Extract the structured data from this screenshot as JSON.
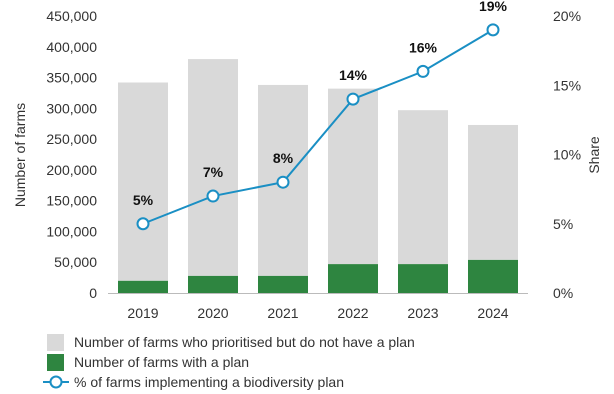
{
  "chart_data": {
    "type": "bar",
    "categories": [
      "2019",
      "2020",
      "2021",
      "2022",
      "2023",
      "2024"
    ],
    "series": [
      {
        "name": "Number of farms who prioritised but do not have a plan",
        "type": "bar",
        "stacked": true,
        "axis": "left",
        "values": [
          322000,
          352000,
          310000,
          285000,
          250000,
          219000
        ],
        "color": "#d9d9d9"
      },
      {
        "name": "Number of farms with a plan",
        "type": "bar",
        "stacked": true,
        "axis": "left",
        "values": [
          20000,
          28000,
          28000,
          47000,
          47000,
          54000
        ],
        "color": "#2e8540"
      },
      {
        "name": "% of farms implementing a biodiversity plan",
        "type": "line",
        "axis": "right",
        "values": [
          5,
          7,
          8,
          14,
          16,
          19
        ],
        "labels": [
          "5%",
          "7%",
          "8%",
          "14%",
          "16%",
          "19%"
        ],
        "color": "#1a8fc4"
      }
    ],
    "ylabel": "Number of farms",
    "ylabel_right": "Share",
    "ylim": [
      0,
      450000
    ],
    "ylim_right": [
      0,
      20
    ],
    "yticks": [
      "0",
      "50,000",
      "100,000",
      "150,000",
      "200,000",
      "250,000",
      "300,000",
      "350,000",
      "400,000",
      "450,000"
    ],
    "yticks_right": [
      "0%",
      "5%",
      "10%",
      "15%",
      "20%"
    ],
    "grid": false,
    "legend_position": "bottom"
  }
}
